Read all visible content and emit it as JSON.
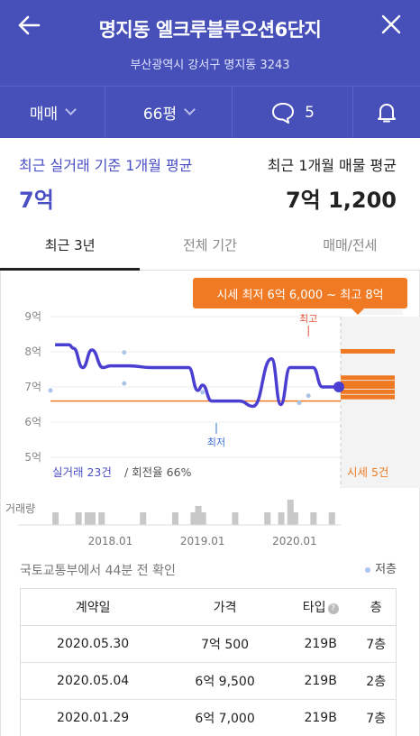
{
  "header": {
    "title": "명지동 엘크루블루오션6단지",
    "address": "부산광역시 강서구 명지동 3243"
  },
  "filters": {
    "deal_type": "매매",
    "size": "66평",
    "comments_count": "5"
  },
  "summary": {
    "left_label": "최근 실거래 기준 1개월 평균",
    "left_value": "7억",
    "right_label": "최근 1개월 매물 평균",
    "right_value": "7억 1,200"
  },
  "tabs": [
    "최근 3년",
    "전체 기간",
    "매매/전세"
  ],
  "chart": {
    "price_badge": "시세 최저 6억 6,000 ~ 최고 8억",
    "max_label": "최고",
    "min_label": "최저",
    "trade_caption_count": "실거래 23건",
    "trade_caption_rate": " / 회전율 66%",
    "market_caption": "시세 5건",
    "volume_label": "거래량",
    "colors": {
      "line": "#4a3fd1",
      "market": "#f07a24",
      "scatter": "#a9c4e6"
    }
  },
  "chart_data": {
    "type": "line",
    "y_ticks": [
      "9억",
      "8억",
      "7억",
      "6억",
      "5억"
    ],
    "ylim": [
      5,
      9
    ],
    "x_ticks": [
      "2018.01",
      "2019.01",
      "2020.01"
    ],
    "series": [
      {
        "name": "실거래",
        "x": [
          2017.4,
          2017.55,
          2017.6,
          2017.7,
          2017.8,
          2017.92,
          2018.0,
          2018.2,
          2018.45,
          2018.7,
          2018.85,
          2018.95,
          2019.0,
          2019.1,
          2019.25,
          2019.4,
          2019.55,
          2019.75,
          2019.85,
          2019.95,
          2020.05,
          2020.2,
          2020.3,
          2020.4,
          2020.48
        ],
        "y": [
          8.2,
          8.2,
          8.1,
          7.55,
          8.05,
          7.55,
          7.6,
          7.6,
          7.55,
          7.55,
          7.55,
          6.9,
          7.05,
          6.6,
          6.6,
          6.6,
          6.45,
          7.8,
          6.5,
          7.55,
          7.55,
          7.55,
          7.0,
          7.0,
          7.0
        ]
      }
    ],
    "scatter": {
      "x": [
        2017.35,
        2018.15,
        2018.15,
        2019.0,
        2020.05,
        2020.15
      ],
      "y": [
        6.9,
        7.98,
        7.1,
        6.85,
        6.55,
        6.75
      ]
    },
    "reference_line": 6.6,
    "market_range": [
      6.6,
      8.0
    ],
    "market_levels": [
      8.0,
      7.25,
      7.1,
      7.0,
      6.85,
      6.7
    ],
    "volume": {
      "x": [
        2017.4,
        2017.65,
        2017.75,
        2017.8,
        2017.9,
        2018.35,
        2018.7,
        2018.9,
        2018.95,
        2019.0,
        2019.35,
        2019.7,
        2019.85,
        2019.95,
        2020.0,
        2020.2,
        2020.4
      ],
      "y": [
        1,
        1,
        1,
        1,
        1,
        1,
        1,
        1,
        1.5,
        1,
        1,
        1,
        1,
        2,
        1,
        1,
        1
      ]
    }
  },
  "info": {
    "source_text": "국토교통부에서 44분 전 확인",
    "legend_text": "저층"
  },
  "table": {
    "headers": [
      "계약일",
      "가격",
      "타입",
      "층"
    ],
    "rows": [
      [
        "2020.05.30",
        "7억 500",
        "219B",
        "7층"
      ],
      [
        "2020.05.04",
        "6억 9,500",
        "219B",
        "2층"
      ],
      [
        "2020.01.29",
        "6억 7,000",
        "219B",
        "7층"
      ]
    ]
  }
}
